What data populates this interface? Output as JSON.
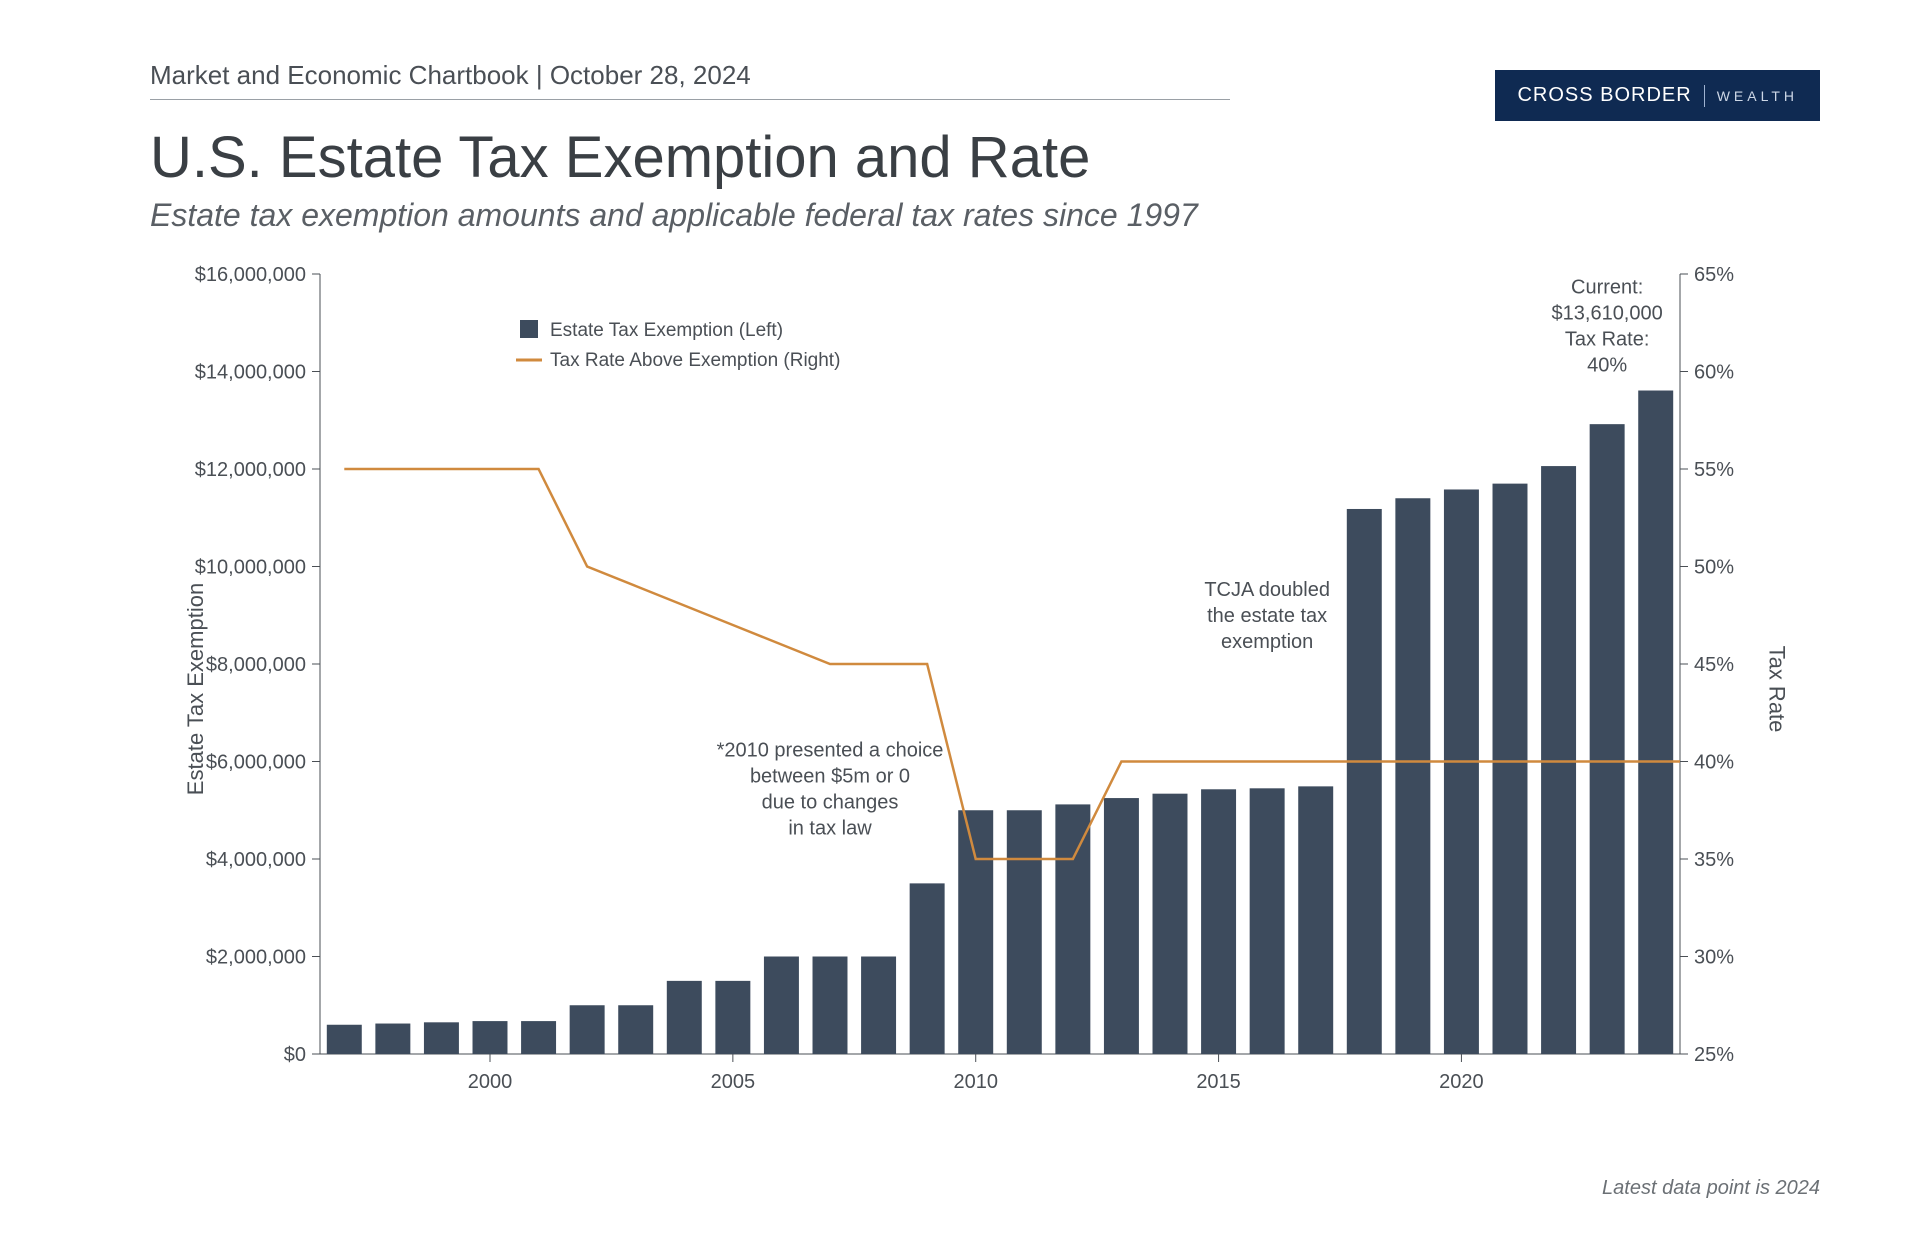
{
  "header": {
    "line": "Market and Economic Chartbook | October 28, 2024"
  },
  "logo": {
    "main": "CROSS BORDER",
    "sub": "WEALTH"
  },
  "title": "U.S. Estate Tax Exemption and Rate",
  "subtitle": "Estate tax exemption amounts and applicable federal tax rates since 1997",
  "footnote": "Latest data point is 2024",
  "chart": {
    "type": "bar+line-dual-axis",
    "background_color": "#ffffff",
    "bar_color": "#3d4b5d",
    "line_color": "#d08a3e",
    "axis_text_color": "#4a4f55",
    "left_axis": {
      "title": "Estate Tax Exemption",
      "min": 0,
      "max": 16000000,
      "tick_step": 2000000,
      "tick_labels": [
        "$0",
        "$2,000,000",
        "$4,000,000",
        "$6,000,000",
        "$8,000,000",
        "$10,000,000",
        "$12,000,000",
        "$14,000,000",
        "$16,000,000"
      ]
    },
    "right_axis": {
      "title": "Tax Rate",
      "min": 25,
      "max": 65,
      "tick_step": 5,
      "tick_labels": [
        "25%",
        "30%",
        "35%",
        "40%",
        "45%",
        "50%",
        "55%",
        "60%",
        "65%"
      ]
    },
    "x_axis": {
      "tick_years": [
        2000,
        2005,
        2010,
        2015,
        2020
      ]
    },
    "legend": {
      "items": [
        {
          "label": "Estate Tax Exemption (Left)",
          "swatch": "bar",
          "color": "#3d4b5d"
        },
        {
          "label": "Tax Rate Above Exemption (Right)",
          "swatch": "line",
          "color": "#d08a3e"
        }
      ]
    },
    "years": [
      1997,
      1998,
      1999,
      2000,
      2001,
      2002,
      2003,
      2004,
      2005,
      2006,
      2007,
      2008,
      2009,
      2010,
      2011,
      2012,
      2013,
      2014,
      2015,
      2016,
      2017,
      2018,
      2019,
      2020,
      2021,
      2022,
      2023,
      2024
    ],
    "exemption": [
      600000,
      625000,
      650000,
      675000,
      675000,
      1000000,
      1000000,
      1500000,
      1500000,
      2000000,
      2000000,
      2000000,
      3500000,
      5000000,
      5000000,
      5120000,
      5250000,
      5340000,
      5430000,
      5450000,
      5490000,
      11180000,
      11400000,
      11580000,
      11700000,
      12060000,
      12920000,
      13610000
    ],
    "tax_rate": [
      55,
      55,
      55,
      55,
      55,
      50,
      49,
      48,
      47,
      46,
      45,
      45,
      45,
      35,
      35,
      35,
      40,
      40,
      40,
      40,
      40,
      40,
      40,
      40,
      40,
      40,
      40,
      40
    ],
    "bar_width_ratio": 0.72,
    "line_width": 2.5,
    "annotations": {
      "note_2010": {
        "lines": [
          "*2010 presented a choice",
          "between $5m or 0",
          "due to changes",
          "in tax law"
        ],
        "anchor_year": 2007
      },
      "note_tcja": {
        "lines": [
          "TCJA doubled",
          "the estate tax",
          "exemption"
        ],
        "anchor_year": 2016
      },
      "note_current": {
        "lines": [
          "Current:",
          "$13,610,000",
          "Tax Rate:",
          "40%"
        ],
        "anchor_year": 2023
      }
    }
  }
}
